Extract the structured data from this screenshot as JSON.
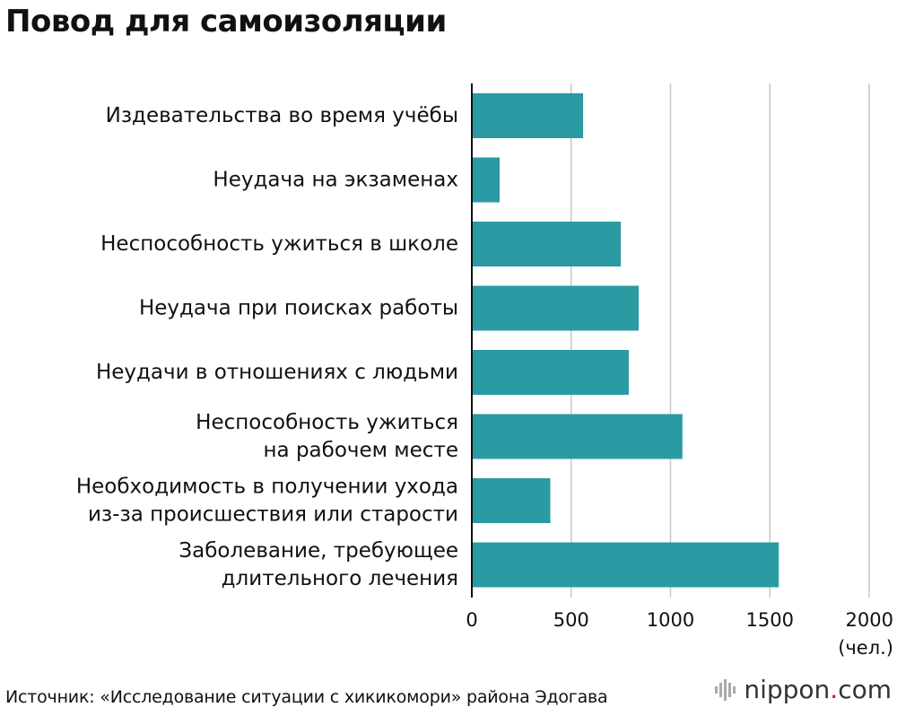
{
  "title": "Повод для самоизоляции",
  "source": "Источник: «Исследование ситуации с хикикомори» района Эдогава",
  "brand": {
    "name_a": "nippon",
    "dot": ".",
    "name_b": "com",
    "icon": "nippon-logo-icon"
  },
  "chart_data": {
    "type": "bar",
    "orientation": "horizontal",
    "categories": [
      [
        "Издевательства во время учёбы"
      ],
      [
        "Неудача на экзаменах"
      ],
      [
        "Неспособность ужиться в школе"
      ],
      [
        "Неудача при поисках работы"
      ],
      [
        "Неудачи в отношениях с людьми"
      ],
      [
        "Неспособность ужиться",
        "на рабочем месте"
      ],
      [
        "Необходимость в получении ухода",
        "из-за происшествия или старости"
      ],
      [
        "Заболевание, требующее",
        "длительного лечения"
      ]
    ],
    "values": [
      560,
      140,
      750,
      840,
      790,
      1060,
      395,
      1545
    ],
    "xlim": [
      0,
      2000
    ],
    "xticks": [
      0,
      500,
      1000,
      1500,
      2000
    ],
    "unit_label": "(чел.)",
    "grid": true,
    "bar_color": "#2a9aa3",
    "grid_color": "#c8c8c8"
  }
}
